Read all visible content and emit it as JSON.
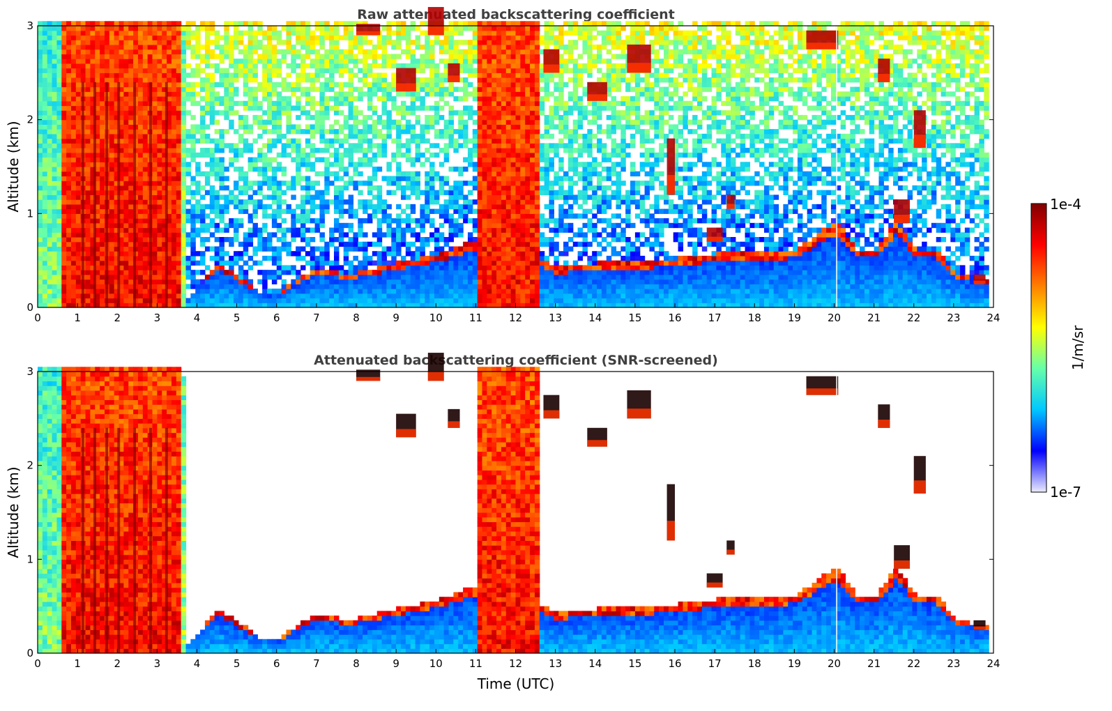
{
  "chart_data": [
    {
      "type": "heatmap",
      "title": "Raw attenuated backscattering coefficient",
      "xlabel": "",
      "ylabel": "Altitude (km)",
      "xlim": [
        0,
        24
      ],
      "ylim": [
        0,
        3
      ],
      "x_ticks": [
        "0",
        "1",
        "2",
        "3",
        "4",
        "5",
        "6",
        "7",
        "8",
        "9",
        "10",
        "11",
        "12",
        "13",
        "14",
        "15",
        "16",
        "17",
        "18",
        "19",
        "20",
        "21",
        "22",
        "23",
        "24"
      ],
      "y_ticks": [
        "0",
        "1",
        "2",
        "3"
      ],
      "screened": false
    },
    {
      "type": "heatmap",
      "title": "Attenuated backscattering coefficient (SNR-screened)",
      "xlabel": "Time (UTC)",
      "ylabel": "Altitude (km)",
      "xlim": [
        0,
        24
      ],
      "ylim": [
        0,
        3
      ],
      "x_ticks": [
        "0",
        "1",
        "2",
        "3",
        "4",
        "5",
        "6",
        "7",
        "8",
        "9",
        "10",
        "11",
        "12",
        "13",
        "14",
        "15",
        "16",
        "17",
        "18",
        "19",
        "20",
        "21",
        "22",
        "23",
        "24"
      ],
      "y_ticks": [
        "0",
        "1",
        "2",
        "3"
      ],
      "screened": true
    }
  ],
  "colorbar": {
    "label": "1/m/sr",
    "max_label": "1e-4",
    "min_label": "1e-7",
    "scale": "log",
    "colormap": "jet",
    "colors": [
      "#ebebff",
      "#0000ff",
      "#00c8ff",
      "#66ffaa",
      "#ffff00",
      "#ff7f00",
      "#ff0000",
      "#800000"
    ]
  },
  "features": {
    "data_end_hour": 23.8,
    "column_groups": [
      {
        "start": 0.0,
        "end": 0.6,
        "level": 0.45,
        "height": 3.0
      },
      {
        "start": 0.6,
        "end": 3.5,
        "level": 0.86,
        "height": 3.0
      },
      {
        "start": 3.5,
        "end": 3.7,
        "level": 0.5,
        "height": 2.9
      },
      {
        "start": 11.0,
        "end": 12.5,
        "level": 0.85,
        "height": 3.0
      }
    ],
    "boundary_layer": [
      {
        "x": 3.6,
        "y": 0.05
      },
      {
        "x": 4.0,
        "y": 0.2
      },
      {
        "x": 4.5,
        "y": 0.45
      },
      {
        "x": 5.0,
        "y": 0.3
      },
      {
        "x": 5.5,
        "y": 0.15
      },
      {
        "x": 6.0,
        "y": 0.12
      },
      {
        "x": 6.5,
        "y": 0.3
      },
      {
        "x": 7.0,
        "y": 0.4
      },
      {
        "x": 7.5,
        "y": 0.35
      },
      {
        "x": 8.0,
        "y": 0.35
      },
      {
        "x": 9.0,
        "y": 0.45
      },
      {
        "x": 10.0,
        "y": 0.55
      },
      {
        "x": 11.0,
        "y": 0.7
      },
      {
        "x": 12.5,
        "y": 0.5
      },
      {
        "x": 13.0,
        "y": 0.4
      },
      {
        "x": 14.0,
        "y": 0.45
      },
      {
        "x": 15.0,
        "y": 0.45
      },
      {
        "x": 16.0,
        "y": 0.5
      },
      {
        "x": 17.0,
        "y": 0.55
      },
      {
        "x": 18.0,
        "y": 0.55
      },
      {
        "x": 19.0,
        "y": 0.6
      },
      {
        "x": 20.0,
        "y": 0.9
      },
      {
        "x": 20.5,
        "y": 0.6
      },
      {
        "x": 21.0,
        "y": 0.6
      },
      {
        "x": 21.5,
        "y": 0.9
      },
      {
        "x": 22.0,
        "y": 0.6
      },
      {
        "x": 22.5,
        "y": 0.6
      },
      {
        "x": 23.0,
        "y": 0.35
      },
      {
        "x": 23.8,
        "y": 0.25
      }
    ],
    "cloud_patches": [
      {
        "x": 8.0,
        "y": 2.9,
        "w": 0.6,
        "h": 0.12
      },
      {
        "x": 9.0,
        "y": 2.3,
        "w": 0.5,
        "h": 0.25
      },
      {
        "x": 9.8,
        "y": 2.9,
        "w": 0.4,
        "h": 0.3
      },
      {
        "x": 10.3,
        "y": 2.4,
        "w": 0.3,
        "h": 0.2
      },
      {
        "x": 12.7,
        "y": 2.5,
        "w": 0.4,
        "h": 0.25
      },
      {
        "x": 13.8,
        "y": 2.2,
        "w": 0.5,
        "h": 0.2
      },
      {
        "x": 14.8,
        "y": 2.5,
        "w": 0.6,
        "h": 0.3
      },
      {
        "x": 15.8,
        "y": 1.2,
        "w": 0.2,
        "h": 0.6
      },
      {
        "x": 16.8,
        "y": 0.7,
        "w": 0.4,
        "h": 0.15
      },
      {
        "x": 17.3,
        "y": 1.05,
        "w": 0.2,
        "h": 0.15
      },
      {
        "x": 19.3,
        "y": 2.75,
        "w": 0.8,
        "h": 0.2
      },
      {
        "x": 21.1,
        "y": 2.4,
        "w": 0.3,
        "h": 0.25
      },
      {
        "x": 21.5,
        "y": 0.9,
        "w": 0.4,
        "h": 0.25
      },
      {
        "x": 22.0,
        "y": 1.7,
        "w": 0.3,
        "h": 0.4
      },
      {
        "x": 23.5,
        "y": 0.25,
        "w": 0.3,
        "h": 0.1
      }
    ],
    "precip_streak_hours": [
      1.1,
      1.4,
      1.7,
      2.0,
      2.4,
      2.8,
      3.2
    ]
  }
}
